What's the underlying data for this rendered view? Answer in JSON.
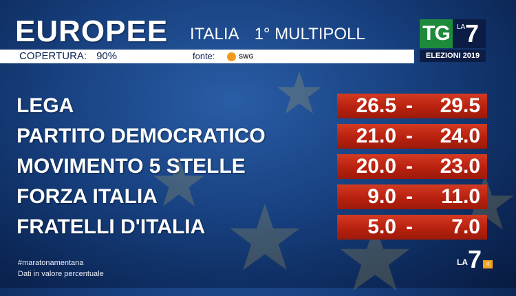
{
  "header": {
    "title": "EUROPEE",
    "subtitle_left": "ITALIA",
    "subtitle_right": "1° MULTIPOLL",
    "coverage_label": "COPERTURA:",
    "coverage_value": "90%",
    "source_label": "fonte:",
    "source_brand": "SWG"
  },
  "logo": {
    "tg": "TG",
    "la": "LA",
    "seven": "7",
    "caption": "ELEZIONI 2019"
  },
  "results": [
    {
      "party": "LEGA",
      "low": "26.5",
      "sep": "-",
      "high": "29.5"
    },
    {
      "party": "PARTITO DEMOCRATICO",
      "low": "21.0",
      "sep": "-",
      "high": "24.0"
    },
    {
      "party": "MOVIMENTO 5 STELLE",
      "low": "20.0",
      "sep": "-",
      "high": "23.0"
    },
    {
      "party": "FORZA ITALIA",
      "low": "9.0",
      "sep": "-",
      "high": "11.0"
    },
    {
      "party": "FRATELLI D'ITALIA",
      "low": "5.0",
      "sep": "-",
      "high": "7.0"
    }
  ],
  "footer": {
    "hashtag": "#maratonamentana",
    "note": "Dati in valore percentuale"
  },
  "corner_logo": {
    "la": "LA",
    "seven": "7",
    "suffix": "it"
  },
  "colors": {
    "background": "#17407f",
    "range_bar": "#b8210f",
    "tg_green": "#1d8a3c",
    "logo_navy": "#0b1d45",
    "swg_orange": "#f29a1e"
  }
}
